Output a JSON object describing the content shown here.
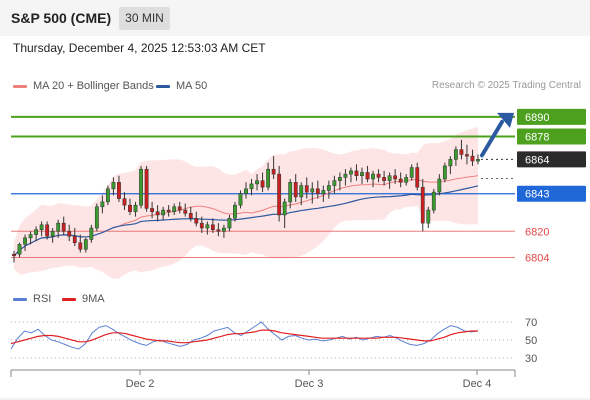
{
  "header": {
    "title": "S&P 500 (CME)",
    "timeframe": "30 MIN"
  },
  "timestamp": "Thursday, December 4, 2025 12:53:03 AM CET",
  "legend": {
    "ma20": {
      "label": "MA 20 + Bollinger Bands",
      "color": "#f08080"
    },
    "ma50": {
      "label": "MA 50",
      "color": "#2c5aa0"
    },
    "rsi": {
      "label": "RSI",
      "color": "#5b7fd4"
    },
    "nine_ma": {
      "label": "9MA",
      "color": "#e02020"
    }
  },
  "copyright": "Research © 2025 Trading Central",
  "colors": {
    "up": "#3a9a2e",
    "down": "#c82020",
    "wick": "#333333",
    "band": "#fde0e0"
  },
  "chart_data": {
    "type": "candlestick",
    "x_ticks": [
      "Dec 2",
      "Dec 3",
      "Dec 4"
    ],
    "ylim": [
      6800,
      6893
    ],
    "current_price": "6864",
    "levels": [
      {
        "value": 6890,
        "label": "6890",
        "kind": "resistance",
        "color": "#4ca01e"
      },
      {
        "value": 6878,
        "label": "6878",
        "kind": "resistance",
        "color": "#4ca01e"
      },
      {
        "value": 6843,
        "label": "6843",
        "kind": "pivot",
        "color": "#2067d8"
      },
      {
        "value": 6820,
        "label": "6820",
        "kind": "support",
        "color": "#e04848"
      },
      {
        "value": 6804,
        "label": "6804",
        "kind": "support",
        "color": "#e04848"
      }
    ],
    "target_arrow": {
      "from": 6864,
      "to": 6890
    },
    "candles": [
      [
        6806,
        6808,
        6801,
        6805
      ],
      [
        6806,
        6813,
        6804,
        6812
      ],
      [
        6812,
        6818,
        6808,
        6816
      ],
      [
        6816,
        6820,
        6812,
        6818
      ],
      [
        6818,
        6823,
        6814,
        6821
      ],
      [
        6821,
        6826,
        6817,
        6824
      ],
      [
        6824,
        6826,
        6815,
        6817
      ],
      [
        6817,
        6822,
        6813,
        6820
      ],
      [
        6820,
        6827,
        6816,
        6825
      ],
      [
        6825,
        6829,
        6818,
        6820
      ],
      [
        6820,
        6824,
        6814,
        6817
      ],
      [
        6817,
        6822,
        6811,
        6813
      ],
      [
        6813,
        6818,
        6807,
        6809
      ],
      [
        6809,
        6816,
        6807,
        6815
      ],
      [
        6815,
        6824,
        6813,
        6822
      ],
      [
        6822,
        6837,
        6820,
        6835
      ],
      [
        6835,
        6842,
        6831,
        6838
      ],
      [
        6838,
        6848,
        6836,
        6846
      ],
      [
        6846,
        6853,
        6842,
        6850
      ],
      [
        6850,
        6854,
        6838,
        6840
      ],
      [
        6840,
        6844,
        6833,
        6836
      ],
      [
        6836,
        6840,
        6830,
        6832
      ],
      [
        6832,
        6838,
        6829,
        6836
      ],
      [
        6836,
        6860,
        6834,
        6858
      ],
      [
        6858,
        6860,
        6832,
        6834
      ],
      [
        6834,
        6838,
        6828,
        6832
      ],
      [
        6832,
        6836,
        6826,
        6830
      ],
      [
        6830,
        6835,
        6827,
        6833
      ],
      [
        6833,
        6836,
        6829,
        6832
      ],
      [
        6832,
        6837,
        6830,
        6835
      ],
      [
        6835,
        6838,
        6831,
        6833
      ],
      [
        6833,
        6837,
        6829,
        6831
      ],
      [
        6831,
        6835,
        6826,
        6828
      ],
      [
        6828,
        6832,
        6823,
        6825
      ],
      [
        6825,
        6829,
        6819,
        6822
      ],
      [
        6822,
        6826,
        6818,
        6824
      ],
      [
        6824,
        6828,
        6819,
        6821
      ],
      [
        6821,
        6825,
        6817,
        6820
      ],
      [
        6820,
        6824,
        6816,
        6822
      ],
      [
        6822,
        6830,
        6820,
        6828
      ],
      [
        6828,
        6838,
        6826,
        6836
      ],
      [
        6836,
        6845,
        6834,
        6843
      ],
      [
        6843,
        6850,
        6840,
        6846
      ],
      [
        6846,
        6852,
        6842,
        6849
      ],
      [
        6849,
        6855,
        6845,
        6851
      ],
      [
        6851,
        6856,
        6844,
        6847
      ],
      [
        6847,
        6862,
        6845,
        6858
      ],
      [
        6858,
        6866,
        6852,
        6855
      ],
      [
        6855,
        6860,
        6826,
        6830
      ],
      [
        6830,
        6840,
        6822,
        6838
      ],
      [
        6838,
        6852,
        6834,
        6850
      ],
      [
        6850,
        6855,
        6838,
        6841
      ],
      [
        6841,
        6850,
        6836,
        6848
      ],
      [
        6848,
        6853,
        6840,
        6844
      ],
      [
        6844,
        6850,
        6837,
        6846
      ],
      [
        6846,
        6851,
        6840,
        6843
      ],
      [
        6843,
        6848,
        6838,
        6845
      ],
      [
        6845,
        6851,
        6840,
        6848
      ],
      [
        6848,
        6854,
        6843,
        6851
      ],
      [
        6851,
        6856,
        6845,
        6853
      ],
      [
        6853,
        6858,
        6848,
        6855
      ],
      [
        6855,
        6859,
        6850,
        6857
      ],
      [
        6857,
        6861,
        6851,
        6854
      ],
      [
        6854,
        6859,
        6849,
        6856
      ],
      [
        6856,
        6860,
        6850,
        6852
      ],
      [
        6852,
        6857,
        6847,
        6855
      ],
      [
        6855,
        6858,
        6850,
        6853
      ],
      [
        6853,
        6857,
        6848,
        6851
      ],
      [
        6851,
        6856,
        6846,
        6854
      ],
      [
        6854,
        6858,
        6849,
        6852
      ],
      [
        6852,
        6856,
        6847,
        6850
      ],
      [
        6850,
        6855,
        6848,
        6853
      ],
      [
        6853,
        6861,
        6851,
        6859
      ],
      [
        6859,
        6862,
        6845,
        6847
      ],
      [
        6847,
        6852,
        6820,
        6825
      ],
      [
        6825,
        6835,
        6822,
        6833
      ],
      [
        6833,
        6846,
        6831,
        6844
      ],
      [
        6844,
        6855,
        6842,
        6852
      ],
      [
        6852,
        6862,
        6850,
        6860
      ],
      [
        6860,
        6866,
        6855,
        6864
      ],
      [
        6864,
        6872,
        6860,
        6870
      ],
      [
        6870,
        6876,
        6864,
        6867
      ],
      [
        6867,
        6873,
        6861,
        6866
      ],
      [
        6866,
        6870,
        6860,
        6863
      ],
      [
        6863,
        6867,
        6861,
        6864
      ]
    ],
    "rsi": {
      "ticks": [
        "70",
        "50",
        "30"
      ],
      "rsi_values": [
        40,
        52,
        60,
        58,
        62,
        55,
        50,
        48,
        45,
        42,
        40,
        46,
        58,
        64,
        66,
        62,
        57,
        53,
        49,
        46,
        44,
        48,
        50,
        47,
        45,
        43,
        45,
        50,
        52,
        55,
        60,
        62,
        64,
        58,
        55,
        60,
        65,
        70,
        62,
        56,
        50,
        54,
        55,
        52,
        50,
        51,
        49,
        50,
        52,
        54,
        51,
        53,
        50,
        52,
        54,
        53,
        55,
        52,
        48,
        45,
        44,
        46,
        50,
        57,
        62,
        66,
        64,
        60,
        59,
        60
      ],
      "ma_values": [
        46,
        48,
        50,
        52,
        54,
        55,
        55,
        54,
        52,
        50,
        48,
        48,
        50,
        53,
        56,
        58,
        58,
        57,
        55,
        53,
        51,
        50,
        49,
        49,
        48,
        47,
        47,
        48,
        49,
        50,
        52,
        54,
        56,
        57,
        57,
        58,
        59,
        61,
        61,
        60,
        58,
        57,
        56,
        55,
        54,
        53,
        52,
        52,
        52,
        52,
        52,
        52,
        52,
        52,
        52,
        53,
        53,
        53,
        52,
        51,
        50,
        49,
        49,
        51,
        53,
        56,
        58,
        59,
        60,
        60
      ]
    }
  }
}
